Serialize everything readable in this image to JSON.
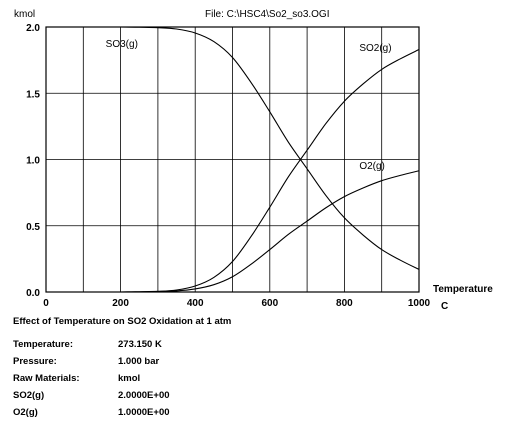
{
  "chart_data": {
    "type": "line",
    "file_label": "File: C:\\HSC4\\So2_so3.OGI",
    "y_unit": "kmol",
    "xlabel": "Temperature",
    "x_unit": "C",
    "xlim": [
      0,
      1000
    ],
    "ylim": [
      0,
      2.0
    ],
    "x_ticks": [
      "0",
      "200",
      "400",
      "600",
      "800",
      "1000"
    ],
    "y_ticks": [
      "0.0",
      "0.5",
      "1.0",
      "1.5",
      "2.0"
    ],
    "grid": true,
    "x": [
      0,
      100,
      200,
      250,
      300,
      350,
      400,
      450,
      500,
      550,
      600,
      650,
      700,
      750,
      800,
      850,
      900,
      950,
      1000
    ],
    "series": [
      {
        "name": "SO3(g)",
        "values": [
          2.0,
          2.0,
          2.0,
          1.998,
          1.995,
          1.985,
          1.955,
          1.89,
          1.77,
          1.58,
          1.36,
          1.13,
          0.93,
          0.73,
          0.56,
          0.43,
          0.32,
          0.24,
          0.17
        ]
      },
      {
        "name": "SO2(g)",
        "values": [
          0.0,
          0.0,
          0.0,
          0.002,
          0.005,
          0.015,
          0.045,
          0.11,
          0.23,
          0.42,
          0.64,
          0.87,
          1.07,
          1.27,
          1.44,
          1.57,
          1.68,
          1.76,
          1.83
        ]
      },
      {
        "name": "O2(g)",
        "values": [
          0.0,
          0.0,
          0.0,
          0.001,
          0.003,
          0.008,
          0.023,
          0.055,
          0.115,
          0.21,
          0.32,
          0.435,
          0.535,
          0.635,
          0.72,
          0.785,
          0.84,
          0.88,
          0.915
        ]
      }
    ]
  },
  "info": {
    "title": "Effect of Temperature on SO2 Oxidation at 1 atm",
    "rows": [
      {
        "label": "Temperature:",
        "value": "273.150 K"
      },
      {
        "label": "Pressure:",
        "value": "1.000 bar"
      },
      {
        "label": "Raw Materials:",
        "value": "kmol"
      },
      {
        "label": "SO2(g)",
        "value": "2.0000E+00"
      },
      {
        "label": "O2(g)",
        "value": "1.0000E+00"
      }
    ]
  }
}
